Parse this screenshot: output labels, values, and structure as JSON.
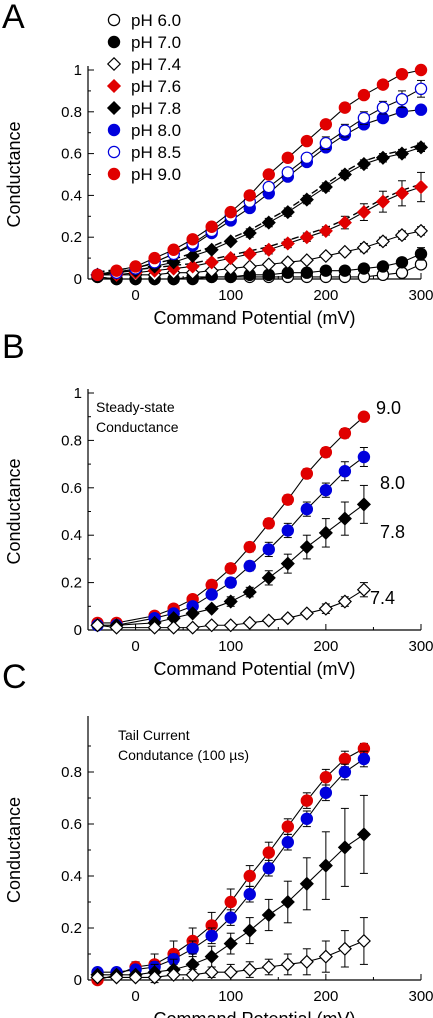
{
  "chart_data": [
    {
      "type": "scatter",
      "panel": "A",
      "xlabel": "Command Potential (mV)",
      "ylabel": "Conductance",
      "xlim": [
        -50,
        300
      ],
      "ylim": [
        0,
        1
      ],
      "xticks": [
        "0",
        "100",
        "200",
        "300"
      ],
      "yticks": [
        "0",
        "0.2",
        "0.4",
        "0.6",
        "0.8",
        "1"
      ],
      "legend_position": "top-left",
      "legend": [
        "pH 6.0",
        "pH 7.0",
        "pH 7.4",
        "pH 7.6",
        "pH 7.8",
        "pH 8.0",
        "pH 8.5",
        "pH 9.0"
      ],
      "x": [
        -40,
        -20,
        0,
        20,
        40,
        60,
        80,
        100,
        120,
        140,
        160,
        180,
        200,
        220,
        240,
        260,
        280,
        300
      ],
      "series": [
        {
          "name": "pH 6.0",
          "marker": "circle-open",
          "color": "#000000",
          "values": [
            0.01,
            0.0,
            0.0,
            0.0,
            0.0,
            0.01,
            0.01,
            0.01,
            0.01,
            0.01,
            0.01,
            0.01,
            0.01,
            0.01,
            0.01,
            0.02,
            0.03,
            0.07
          ],
          "err": [
            0,
            0,
            0,
            0,
            0,
            0,
            0,
            0,
            0,
            0,
            0,
            0,
            0,
            0,
            0,
            0,
            0.01,
            0.02
          ]
        },
        {
          "name": "pH 7.0",
          "marker": "circle-filled",
          "color": "#000000",
          "values": [
            0.01,
            0.0,
            0.0,
            0.0,
            0.0,
            0.0,
            0.01,
            0.01,
            0.02,
            0.02,
            0.03,
            0.03,
            0.04,
            0.04,
            0.05,
            0.06,
            0.08,
            0.12
          ],
          "err": [
            0,
            0,
            0,
            0,
            0,
            0,
            0,
            0,
            0,
            0,
            0.01,
            0.01,
            0.01,
            0.01,
            0.01,
            0.01,
            0.02,
            0.03
          ]
        },
        {
          "name": "pH 7.4",
          "marker": "diamond-open",
          "color": "#000000",
          "values": [
            0.02,
            0.02,
            0.02,
            0.02,
            0.03,
            0.03,
            0.04,
            0.05,
            0.06,
            0.07,
            0.08,
            0.09,
            0.11,
            0.13,
            0.15,
            0.18,
            0.21,
            0.23
          ],
          "err": [
            0,
            0,
            0,
            0,
            0,
            0,
            0,
            0.01,
            0.01,
            0.01,
            0.01,
            0.01,
            0.01,
            0.01,
            0.02,
            0.02,
            0.02,
            0.02
          ]
        },
        {
          "name": "pH 7.6",
          "marker": "diamond-filled",
          "color": "#e00000",
          "values": [
            0.02,
            0.02,
            0.03,
            0.04,
            0.05,
            0.06,
            0.08,
            0.1,
            0.12,
            0.14,
            0.17,
            0.2,
            0.23,
            0.27,
            0.32,
            0.37,
            0.41,
            0.44
          ],
          "err": [
            0,
            0,
            0,
            0,
            0.01,
            0.01,
            0.01,
            0.01,
            0.01,
            0.02,
            0.02,
            0.02,
            0.02,
            0.03,
            0.04,
            0.05,
            0.06,
            0.07
          ]
        },
        {
          "name": "pH 7.8",
          "marker": "diamond-filled",
          "color": "#000000",
          "values": [
            0.02,
            0.03,
            0.04,
            0.06,
            0.08,
            0.11,
            0.14,
            0.18,
            0.22,
            0.27,
            0.32,
            0.38,
            0.44,
            0.5,
            0.55,
            0.58,
            0.6,
            0.63
          ],
          "err": [
            0,
            0,
            0,
            0,
            0.01,
            0.01,
            0.01,
            0.01,
            0.02,
            0.02,
            0.02,
            0.02,
            0.02,
            0.02,
            0.02,
            0.02,
            0.02,
            0.02
          ]
        },
        {
          "name": "pH 8.0",
          "marker": "circle-filled",
          "color": "#0000dd",
          "values": [
            0.02,
            0.03,
            0.05,
            0.08,
            0.12,
            0.16,
            0.22,
            0.28,
            0.34,
            0.41,
            0.49,
            0.56,
            0.63,
            0.69,
            0.74,
            0.77,
            0.8,
            0.81
          ],
          "err": [
            0,
            0,
            0,
            0.01,
            0.01,
            0.01,
            0.01,
            0.02,
            0.02,
            0.02,
            0.02,
            0.02,
            0.02,
            0.02,
            0.02,
            0.02,
            0.02,
            0.02
          ]
        },
        {
          "name": "pH 8.5",
          "marker": "circle-open",
          "color": "#0000dd",
          "values": [
            0.02,
            0.03,
            0.05,
            0.08,
            0.12,
            0.17,
            0.23,
            0.3,
            0.37,
            0.44,
            0.51,
            0.58,
            0.65,
            0.71,
            0.77,
            0.82,
            0.86,
            0.91
          ],
          "err": [
            0,
            0,
            0,
            0.01,
            0.01,
            0.01,
            0.01,
            0.02,
            0.02,
            0.02,
            0.02,
            0.02,
            0.03,
            0.03,
            0.03,
            0.03,
            0.04,
            0.04
          ]
        },
        {
          "name": "pH 9.0",
          "marker": "circle-filled",
          "color": "#e00000",
          "values": [
            0.02,
            0.04,
            0.06,
            0.1,
            0.14,
            0.19,
            0.25,
            0.32,
            0.4,
            0.5,
            0.58,
            0.66,
            0.74,
            0.82,
            0.88,
            0.93,
            0.98,
            1.0
          ],
          "err": [
            0,
            0,
            0,
            0.01,
            0.01,
            0.01,
            0.01,
            0.02,
            0.02,
            0.02,
            0.02,
            0.02,
            0.02,
            0.02,
            0.01,
            0.01,
            0.01,
            0.01
          ]
        }
      ]
    },
    {
      "type": "scatter",
      "panel": "B",
      "annotation": [
        "Steady-state",
        "Conductance"
      ],
      "xlabel": "Command Potential (mV)",
      "ylabel": "Conductance",
      "xlim": [
        -50,
        300
      ],
      "ylim": [
        0,
        1
      ],
      "xticks": [
        "0",
        "100",
        "200",
        "300"
      ],
      "yticks": [
        "0",
        "0.2",
        "0.4",
        "0.6",
        "0.8",
        "1"
      ],
      "x": [
        -40,
        -20,
        0,
        20,
        40,
        60,
        80,
        100,
        120,
        140,
        160,
        180,
        200,
        220,
        240
      ],
      "series": [
        {
          "name": "9.0",
          "marker": "circle-filled",
          "color": "#e00000",
          "values": [
            0.03,
            0.03,
            null,
            0.06,
            0.09,
            0.13,
            0.19,
            0.26,
            0.35,
            0.45,
            0.55,
            0.66,
            0.75,
            0.83,
            0.9
          ],
          "err": [
            0,
            0,
            0,
            0.01,
            0.01,
            0.01,
            0.02,
            0.02,
            0.02,
            0.02,
            0.02,
            0.02,
            0.02,
            0.02,
            0.01
          ]
        },
        {
          "name": "8.0",
          "marker": "circle-filled",
          "color": "#0000dd",
          "values": [
            0.02,
            0.02,
            null,
            0.05,
            0.07,
            0.1,
            0.15,
            0.2,
            0.27,
            0.34,
            0.42,
            0.51,
            0.59,
            0.67,
            0.73
          ],
          "err": [
            0,
            0,
            0,
            0.01,
            0.01,
            0.01,
            0.01,
            0.02,
            0.02,
            0.03,
            0.03,
            0.03,
            0.03,
            0.04,
            0.04
          ]
        },
        {
          "name": "7.8",
          "marker": "diamond-filled",
          "color": "#000000",
          "values": [
            0.02,
            0.02,
            null,
            0.03,
            0.05,
            0.07,
            0.09,
            0.12,
            0.16,
            0.22,
            0.28,
            0.35,
            0.41,
            0.47,
            0.53
          ],
          "err": [
            0,
            0,
            0,
            0.01,
            0.01,
            0.01,
            0.01,
            0.02,
            0.02,
            0.03,
            0.04,
            0.05,
            0.06,
            0.07,
            0.08
          ]
        },
        {
          "name": "7.4",
          "marker": "diamond-open",
          "color": "#000000",
          "values": [
            0.02,
            0.01,
            null,
            0.01,
            0.01,
            0.01,
            0.02,
            0.02,
            0.03,
            0.04,
            0.05,
            0.07,
            0.09,
            0.12,
            0.17
          ],
          "err": [
            0,
            0,
            0,
            0,
            0,
            0,
            0,
            0.01,
            0.01,
            0.01,
            0.01,
            0.01,
            0.02,
            0.02,
            0.03
          ]
        }
      ],
      "series_labels": [
        "9.0",
        "8.0",
        "7.8",
        "7.4"
      ]
    },
    {
      "type": "scatter",
      "panel": "C",
      "annotation": [
        "Tail Current",
        "Condutance (100 µs)"
      ],
      "xlabel": "Command Potential (mV)",
      "ylabel": "Conductance",
      "xlim": [
        -50,
        300
      ],
      "ylim": [
        0,
        1
      ],
      "xticks": [
        "0",
        "100",
        "200",
        "300"
      ],
      "yticks": [
        "0",
        "0.2",
        "0.4",
        "0.6",
        "0.8"
      ],
      "x": [
        -40,
        -20,
        0,
        20,
        40,
        60,
        80,
        100,
        120,
        140,
        160,
        180,
        200,
        220,
        240
      ],
      "series": [
        {
          "name": "pH 9.0",
          "marker": "circle-filled",
          "color": "#e00000",
          "values": [
            0.0,
            0.02,
            0.05,
            0.06,
            0.1,
            0.15,
            0.21,
            0.3,
            0.4,
            0.49,
            0.59,
            0.69,
            0.78,
            0.85,
            0.89
          ],
          "err": [
            0,
            0,
            0.02,
            0.04,
            0.05,
            0.05,
            0.05,
            0.05,
            0.04,
            0.04,
            0.03,
            0.03,
            0.03,
            0.03,
            0.02
          ]
        },
        {
          "name": "pH 8.0",
          "marker": "circle-filled",
          "color": "#0000dd",
          "values": [
            0.03,
            0.03,
            0.04,
            0.05,
            0.08,
            0.12,
            0.17,
            0.24,
            0.33,
            0.43,
            0.53,
            0.62,
            0.72,
            0.8,
            0.85
          ],
          "err": [
            0,
            0,
            0.01,
            0.02,
            0.02,
            0.03,
            0.03,
            0.03,
            0.03,
            0.03,
            0.03,
            0.03,
            0.03,
            0.03,
            0.03
          ]
        },
        {
          "name": "pH 7.8",
          "marker": "diamond-filled",
          "color": "#000000",
          "values": [
            0.02,
            0.02,
            0.02,
            0.03,
            0.04,
            0.06,
            0.09,
            0.14,
            0.19,
            0.25,
            0.3,
            0.37,
            0.44,
            0.51,
            0.56
          ],
          "err": [
            0,
            0,
            0.01,
            0.03,
            0.04,
            0.04,
            0.04,
            0.04,
            0.05,
            0.06,
            0.08,
            0.1,
            0.13,
            0.15,
            0.15
          ]
        },
        {
          "name": "pH 7.4",
          "marker": "diamond-open",
          "color": "#000000",
          "values": [
            0.01,
            0.01,
            0.01,
            0.01,
            0.02,
            0.02,
            0.03,
            0.03,
            0.04,
            0.05,
            0.06,
            0.07,
            0.09,
            0.12,
            0.15
          ],
          "err": [
            0,
            0,
            0.01,
            0.02,
            0.02,
            0.02,
            0.02,
            0.03,
            0.03,
            0.03,
            0.04,
            0.05,
            0.06,
            0.07,
            0.09
          ]
        }
      ]
    }
  ]
}
